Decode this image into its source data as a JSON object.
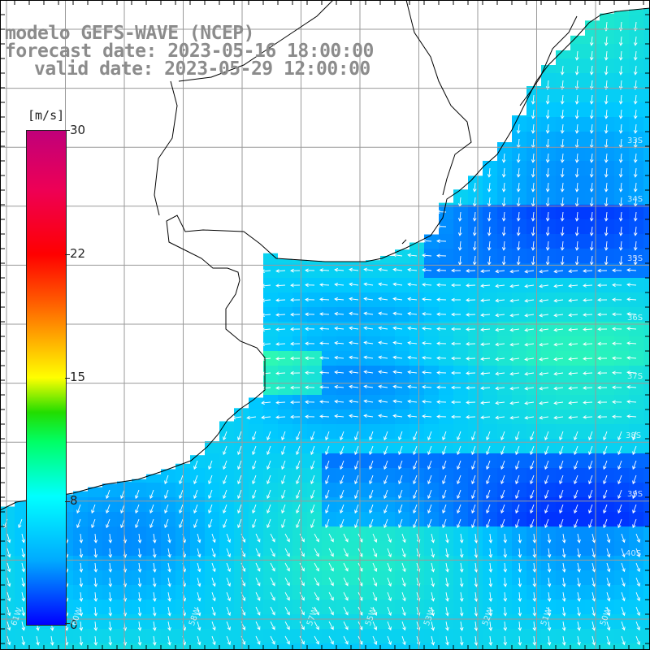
{
  "title": {
    "line1": "modelo GEFS-WAVE (NCEP)",
    "line2": "forecast date: 2023-05-16 18:00:00",
    "line3": "valid date: 2023-05-29 12:00:00"
  },
  "colorbar": {
    "unit": "[m/s]",
    "ticks": [
      {
        "label": "30",
        "value": 30
      },
      {
        "label": "22",
        "value": 22
      },
      {
        "label": "15",
        "value": 15
      },
      {
        "label": "8",
        "value": 8
      },
      {
        "label": "0",
        "value": 0
      }
    ],
    "min": 0,
    "max": 30
  },
  "map": {
    "lat_labels": [
      "33S",
      "34S",
      "35S",
      "36S",
      "37S",
      "38S",
      "39S",
      "40S"
    ],
    "lon_labels": [
      "61W",
      "60W",
      "58W",
      "57W",
      "55W",
      "53W",
      "52W",
      "51W",
      "50W"
    ],
    "colors": {
      "land": "#ffffff",
      "coast": "#000000",
      "grid": "#9a9a9a",
      "vectors": "#ffffff",
      "speed_low": "#0033ff",
      "speed_mid": "#00c8ff",
      "speed_high": "#33ffaa"
    }
  }
}
